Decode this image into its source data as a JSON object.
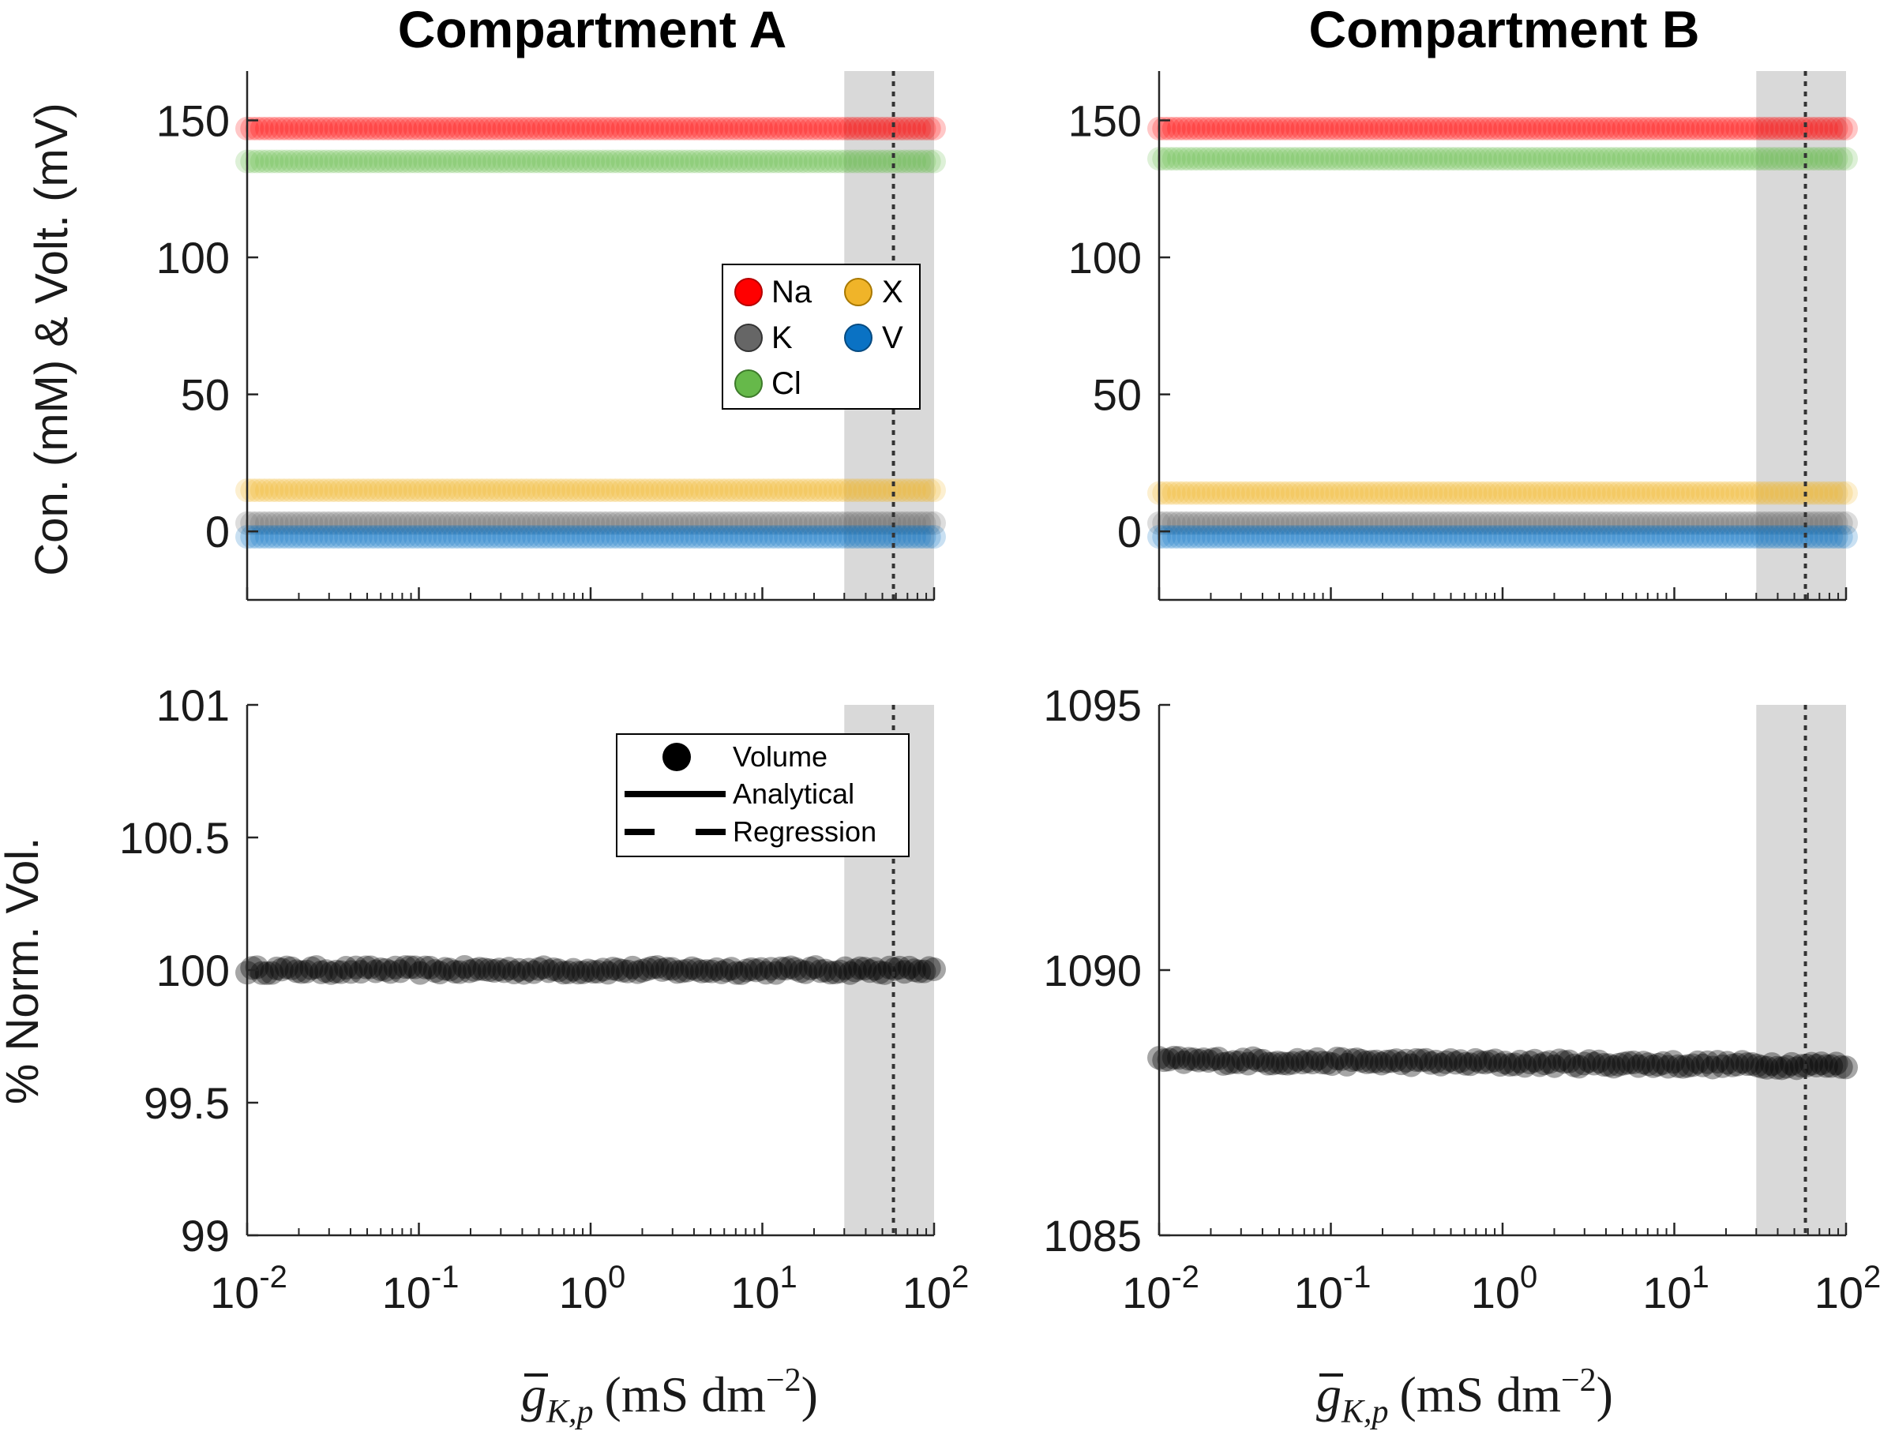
{
  "chart_data": [
    {
      "id": "A_top",
      "type": "scatter",
      "title": "Compartment A",
      "ylabel": "Con. (mM) & Volt. (mV)",
      "xlabel": "",
      "xscale": "log",
      "xlim": [
        0.01,
        100
      ],
      "ylim": [
        -25,
        168
      ],
      "yticks": [
        0,
        50,
        100,
        150
      ],
      "ytick_labels": [
        "0",
        "50",
        "100",
        "150"
      ],
      "shaded_region": [
        30,
        100
      ],
      "vline": 58,
      "series": [
        {
          "name": "Na",
          "color": "#ff0000",
          "value": 147
        },
        {
          "name": "Cl",
          "color": "#66b94a",
          "value": 135
        },
        {
          "name": "X",
          "color": "#f0b429",
          "value": 15
        },
        {
          "name": "K",
          "color": "#666666",
          "value": 3
        },
        {
          "name": "V",
          "color": "#0a72c4",
          "value": -2
        }
      ],
      "legend": {
        "position": "center-right",
        "entries": [
          "Na",
          "X",
          "K",
          "V",
          "Cl"
        ]
      }
    },
    {
      "id": "B_top",
      "type": "scatter",
      "title": "Compartment B",
      "ylabel": "",
      "xlabel": "",
      "xscale": "log",
      "xlim": [
        0.01,
        100
      ],
      "ylim": [
        -25,
        168
      ],
      "yticks": [
        0,
        50,
        100,
        150
      ],
      "ytick_labels": [
        "0",
        "50",
        "100",
        "150"
      ],
      "shaded_region": [
        30,
        100
      ],
      "vline": 58,
      "series": [
        {
          "name": "Na",
          "color": "#ff0000",
          "value": 147
        },
        {
          "name": "Cl",
          "color": "#66b94a",
          "value": 136
        },
        {
          "name": "X",
          "color": "#f0b429",
          "value": 14
        },
        {
          "name": "K",
          "color": "#666666",
          "value": 3
        },
        {
          "name": "V",
          "color": "#0a72c4",
          "value": -2
        }
      ]
    },
    {
      "id": "A_bottom",
      "type": "scatter",
      "title": "",
      "ylabel": "% Norm. Vol.",
      "xlabel": "ḡK,p (mS dm−2)",
      "xscale": "log",
      "xlim": [
        0.01,
        100
      ],
      "ylim": [
        99,
        101
      ],
      "yticks": [
        99,
        99.5,
        100,
        100.5,
        101
      ],
      "ytick_labels": [
        "99",
        "99.5",
        "100",
        "100.5",
        "101"
      ],
      "xtick_labels": [
        "10-2",
        "10-1",
        "100",
        "101",
        "102"
      ],
      "shaded_region": [
        30,
        100
      ],
      "vline": 58,
      "series": [
        {
          "name": "Volume",
          "color": "#000000",
          "start": 100.0,
          "end": 100.0
        }
      ],
      "legend": {
        "position": "upper-right",
        "entries": [
          "Volume",
          "Analytical",
          "Regression"
        ]
      }
    },
    {
      "id": "B_bottom",
      "type": "scatter",
      "title": "",
      "ylabel": "",
      "xlabel": "ḡK,p (mS dm−2)",
      "xscale": "log",
      "xlim": [
        0.01,
        100
      ],
      "ylim": [
        1085,
        1095
      ],
      "yticks": [
        1085,
        1090,
        1095
      ],
      "ytick_labels": [
        "1085",
        "1090",
        "1095"
      ],
      "xtick_labels": [
        "10-2",
        "10-1",
        "100",
        "101",
        "102"
      ],
      "shaded_region": [
        30,
        100
      ],
      "vline": 58,
      "series": [
        {
          "name": "Volume",
          "color": "#000000",
          "start": 1088.3,
          "end": 1088.2
        }
      ]
    }
  ],
  "xaxis": {
    "label_symbol": "g",
    "label_sub": "K,p",
    "label_units": "(mS dm",
    "label_exp": "−2",
    "label_close": ")",
    "ticks": [
      {
        "base": "10",
        "exp": "-2"
      },
      {
        "base": "10",
        "exp": "-1"
      },
      {
        "base": "10",
        "exp": "0"
      },
      {
        "base": "10",
        "exp": "1"
      },
      {
        "base": "10",
        "exp": "2"
      }
    ]
  },
  "colors": {
    "shade": "#d9d9d9",
    "axis": "#262626"
  }
}
